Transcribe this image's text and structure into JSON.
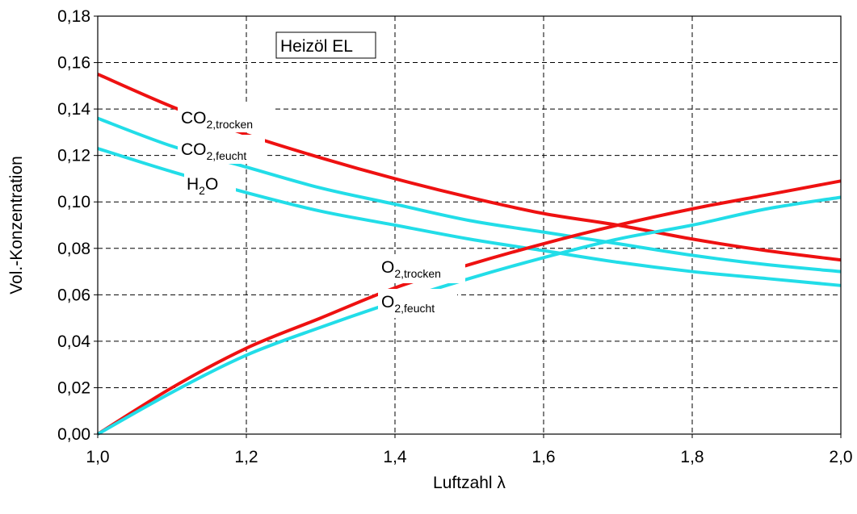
{
  "chart_data": {
    "type": "line",
    "xlabel": "Luftzahl λ",
    "ylabel": "Vol.-Konzentration",
    "xlim": [
      1.0,
      2.0
    ],
    "ylim": [
      0.0,
      0.18
    ],
    "x_ticks": [
      "1,0",
      "1,2",
      "1,4",
      "1,6",
      "1,8",
      "2,0"
    ],
    "y_ticks": [
      "0,00",
      "0,02",
      "0,04",
      "0,06",
      "0,08",
      "0,10",
      "0,12",
      "0,14",
      "0,16",
      "0,18"
    ],
    "grid": true,
    "annotation": "Heizöl EL",
    "colors": {
      "trocken": "#ee1111",
      "feucht": "#22dde8"
    },
    "series": [
      {
        "label": {
          "base": "CO",
          "sub": "2,trocken"
        },
        "color": "trocken",
        "x": [
          1.0,
          1.1,
          1.2,
          1.3,
          1.4,
          1.5,
          1.6,
          1.7,
          1.8,
          1.9,
          2.0
        ],
        "y": [
          0.155,
          0.141,
          0.129,
          0.119,
          0.11,
          0.102,
          0.095,
          0.09,
          0.084,
          0.079,
          0.075
        ]
      },
      {
        "label": {
          "base": "CO",
          "sub": "2,feucht"
        },
        "color": "feucht",
        "x": [
          1.0,
          1.1,
          1.2,
          1.3,
          1.4,
          1.5,
          1.6,
          1.7,
          1.8,
          1.9,
          2.0
        ],
        "y": [
          0.136,
          0.124,
          0.115,
          0.106,
          0.099,
          0.092,
          0.087,
          0.082,
          0.077,
          0.073,
          0.07
        ]
      },
      {
        "label": {
          "base": "H",
          "sub": "2",
          "tail": "O"
        },
        "color": "feucht",
        "x": [
          1.0,
          1.1,
          1.2,
          1.3,
          1.4,
          1.5,
          1.6,
          1.7,
          1.8,
          1.9,
          2.0
        ],
        "y": [
          0.123,
          0.113,
          0.104,
          0.096,
          0.09,
          0.084,
          0.079,
          0.074,
          0.07,
          0.067,
          0.064
        ]
      },
      {
        "label": {
          "base": "O",
          "sub": "2,trocken"
        },
        "color": "trocken",
        "x": [
          1.0,
          1.1,
          1.2,
          1.3,
          1.4,
          1.5,
          1.6,
          1.7,
          1.8,
          1.9,
          2.0
        ],
        "y": [
          0.0,
          0.02,
          0.037,
          0.05,
          0.063,
          0.073,
          0.082,
          0.09,
          0.097,
          0.103,
          0.109
        ]
      },
      {
        "label": {
          "base": "O",
          "sub": "2,feucht"
        },
        "color": "feucht",
        "x": [
          1.0,
          1.1,
          1.2,
          1.3,
          1.4,
          1.5,
          1.6,
          1.7,
          1.8,
          1.9,
          2.0
        ],
        "y": [
          0.0,
          0.018,
          0.034,
          0.046,
          0.057,
          0.067,
          0.076,
          0.084,
          0.09,
          0.097,
          0.102
        ]
      }
    ]
  }
}
